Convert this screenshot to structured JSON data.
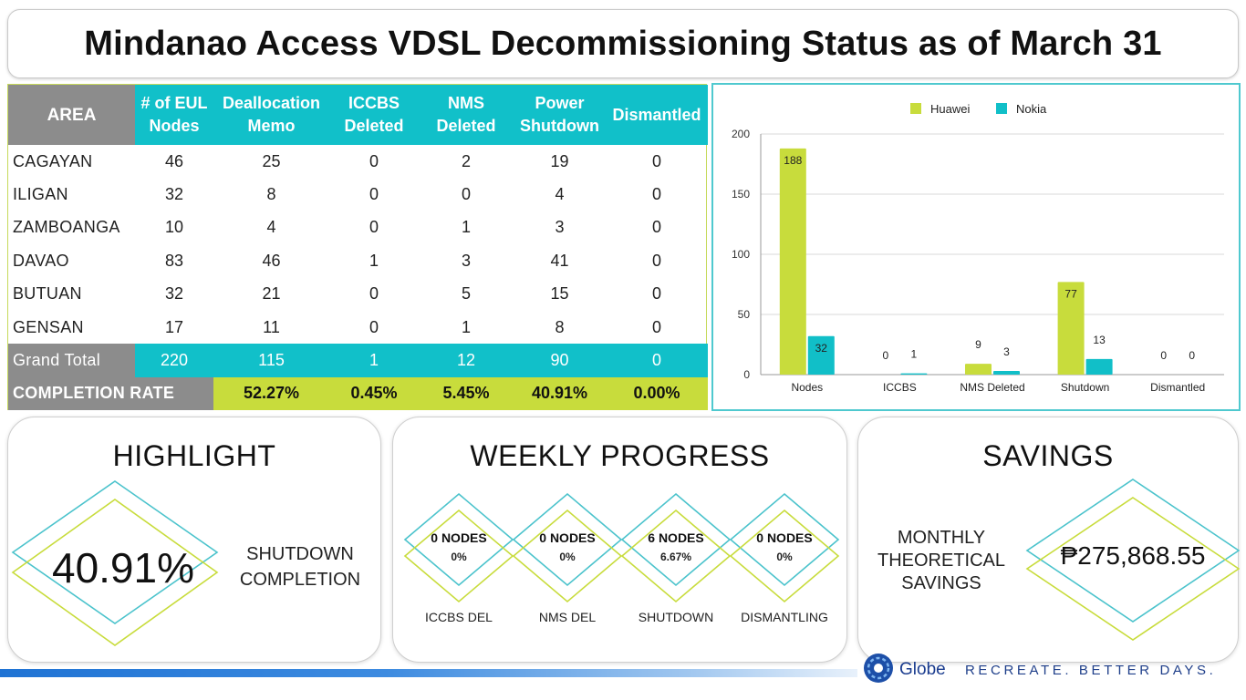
{
  "header": {
    "title": "Mindanao Access VDSL Decommissioning Status as of March 31"
  },
  "table": {
    "columns": [
      "AREA",
      "# of EUL Nodes",
      "Deallocation Memo",
      "ICCBS Deleted",
      "NMS Deleted",
      "Power Shutdown",
      "Dismantled"
    ],
    "rows": [
      [
        "CAGAYAN",
        "46",
        "25",
        "0",
        "2",
        "19",
        "0"
      ],
      [
        "ILIGAN",
        "32",
        "8",
        "0",
        "0",
        "4",
        "0"
      ],
      [
        "ZAMBOANGA",
        "10",
        "4",
        "0",
        "1",
        "3",
        "0"
      ],
      [
        "DAVAO",
        "83",
        "46",
        "1",
        "3",
        "41",
        "0"
      ],
      [
        "BUTUAN",
        "32",
        "21",
        "0",
        "5",
        "15",
        "0"
      ],
      [
        "GENSAN",
        "17",
        "11",
        "0",
        "1",
        "8",
        "0"
      ]
    ],
    "grand_total": [
      "Grand Total",
      "220",
      "115",
      "1",
      "12",
      "90",
      "0"
    ],
    "completion_rate": [
      "COMPLETION RATE",
      "52.27%",
      "0.45%",
      "5.45%",
      "40.91%",
      "0.00%"
    ]
  },
  "chart_data": {
    "type": "bar",
    "categories": [
      "Nodes",
      "ICCBS",
      "NMS Deleted",
      "Shutdown",
      "Dismantled"
    ],
    "series": [
      {
        "name": "Huawei",
        "values": [
          188,
          0,
          9,
          77,
          0
        ],
        "color": "#c8dc3c"
      },
      {
        "name": "Nokia",
        "values": [
          32,
          1,
          3,
          13,
          0
        ],
        "color": "#11bfc8"
      }
    ],
    "ylim": [
      0,
      200
    ],
    "yticks": [
      0,
      50,
      100,
      150,
      200
    ],
    "legend": "top-center",
    "title": "",
    "xlabel": "",
    "ylabel": ""
  },
  "highlight": {
    "title": "HIGHLIGHT",
    "value": "40.91%",
    "label_line1": "SHUTDOWN",
    "label_line2": "COMPLETION"
  },
  "weekly": {
    "title": "WEEKLY PROGRESS",
    "items": [
      {
        "nodes": "0 NODES",
        "pct": "0%",
        "label": "ICCBS DEL"
      },
      {
        "nodes": "0 NODES",
        "pct": "0%",
        "label": "NMS DEL"
      },
      {
        "nodes": "6 NODES",
        "pct": "6.67%",
        "label": "SHUTDOWN"
      },
      {
        "nodes": "0 NODES",
        "pct": "0%",
        "label": "DISMANTLING"
      }
    ]
  },
  "savings": {
    "title": "SAVINGS",
    "label_line1": "MONTHLY",
    "label_line2": "THEORETICAL",
    "label_line3": "SAVINGS",
    "value": "₱275,868.55"
  },
  "footer": {
    "brand": "Globe",
    "tagline": "RECREATE. BETTER DAYS."
  },
  "colors": {
    "teal": "#11c0c9",
    "lime": "#c8dc3c",
    "gray": "#8c8c8c"
  }
}
